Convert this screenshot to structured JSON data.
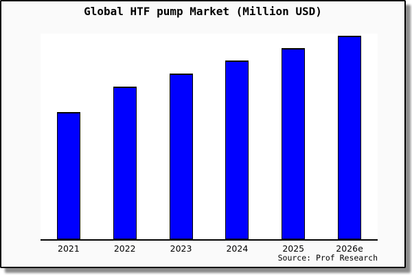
{
  "chart_data": {
    "type": "bar",
    "title": "Global HTF pump Market (Million USD)",
    "categories": [
      "2021",
      "2022",
      "2023",
      "2024",
      "2025",
      "2026e"
    ],
    "values": [
      62.6,
      75.1,
      81.5,
      87.9,
      93.9,
      100
    ],
    "values_note": "y-axis is unlabeled in the chart; values are relative heights estimated from pixels, normalized so 2026e = 100",
    "xlabel": "",
    "ylabel": "",
    "ylim": [
      0,
      101
    ],
    "grid": false,
    "legend": null,
    "bar_color": "#0000ff",
    "bar_edge_color": "#000000",
    "source_note": "Source: Prof Research"
  }
}
